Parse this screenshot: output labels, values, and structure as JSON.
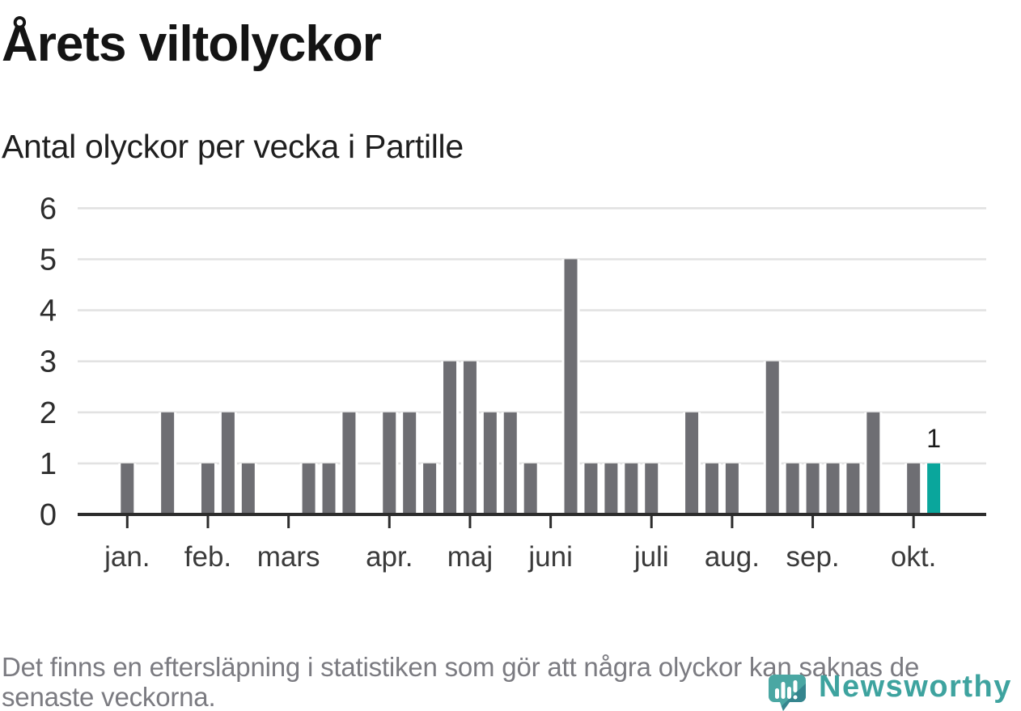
{
  "title": "Årets viltolyckor",
  "subtitle": "Antal olyckor per vecka i Partille",
  "footer": {
    "lines": [
      "Det finns en eftersläpning i statistiken som gör att några olyckor kan saknas de",
      "senaste veckorna."
    ]
  },
  "logo": {
    "text": "Newsworthy"
  },
  "colors": {
    "bar": "#6e6e73",
    "accent": "#0aa69c",
    "grid": "#e2e2e2",
    "axis": "#2c2c2c",
    "y_label": "#2d2d2d",
    "x_label": "#3a3a3a",
    "value_label": "#1a1a1a",
    "footer_text": "#7b7b81",
    "logo_teal": "#3ea39f",
    "logo_icon_main": "#4aa7a3",
    "logo_icon_shade": "#35858e"
  },
  "chart_data": {
    "type": "bar",
    "title": "Årets viltolyckor",
    "subtitle": "Antal olyckor per vecka i Partille",
    "xlabel": "",
    "ylabel": "",
    "ylim": [
      0,
      6
    ],
    "yticks": [
      0,
      1,
      2,
      3,
      4,
      5,
      6
    ],
    "grid": "horizontal",
    "x_unit": "vecka",
    "values": [
      1,
      0,
      2,
      0,
      1,
      2,
      1,
      0,
      0,
      1,
      1,
      2,
      0,
      2,
      2,
      1,
      3,
      3,
      2,
      2,
      1,
      0,
      5,
      1,
      1,
      1,
      1,
      0,
      2,
      1,
      1,
      0,
      3,
      1,
      1,
      1,
      1,
      2,
      0,
      1,
      1
    ],
    "highlight_last_bar": true,
    "last_bar_value_label": "1",
    "month_ticks": [
      {
        "label": "jan.",
        "week": 0
      },
      {
        "label": "feb.",
        "week": 4
      },
      {
        "label": "mars",
        "week": 8
      },
      {
        "label": "apr.",
        "week": 13
      },
      {
        "label": "maj",
        "week": 17
      },
      {
        "label": "juni",
        "week": 21
      },
      {
        "label": "juli",
        "week": 26
      },
      {
        "label": "aug.",
        "week": 30
      },
      {
        "label": "sep.",
        "week": 34
      },
      {
        "label": "okt.",
        "week": 39
      }
    ]
  }
}
